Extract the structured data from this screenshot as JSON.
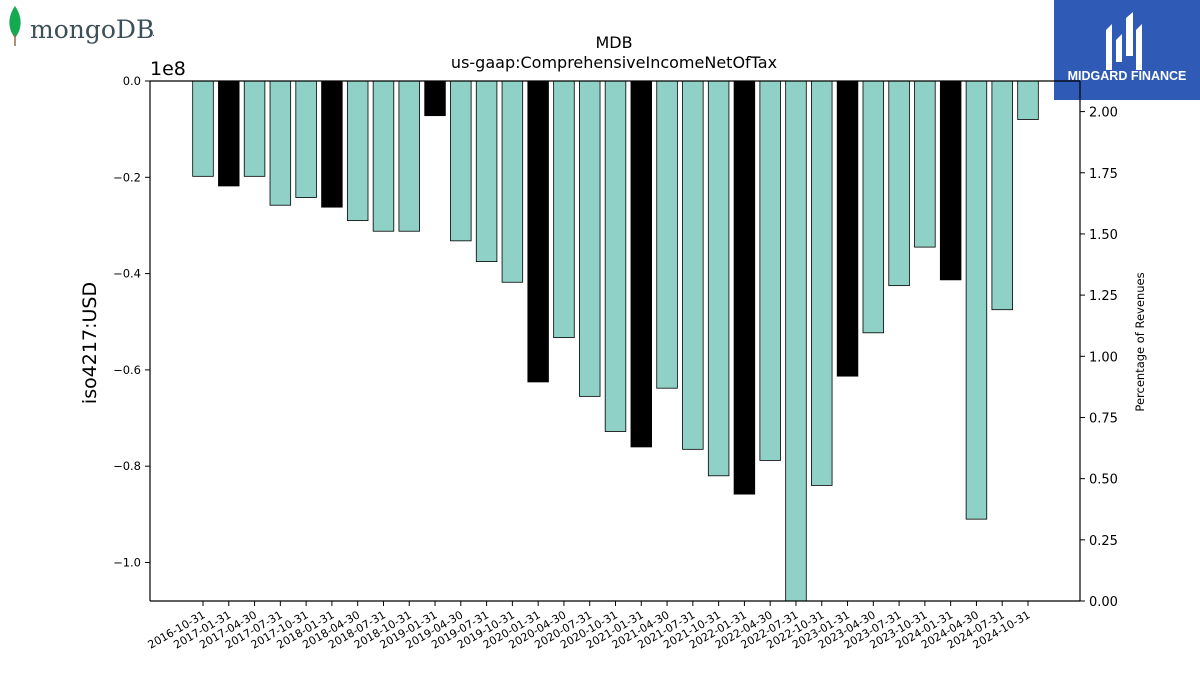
{
  "brand_left": {
    "name": "mongoDB",
    "suffix": "."
  },
  "brand_right": {
    "name": "MIDGARD FINANCE"
  },
  "chart_data": {
    "type": "bar",
    "title": "MDB",
    "subtitle": "us-gaap:ComprehensiveIncomeNetOfTax",
    "ylabel": "iso4217:USD",
    "y2label": "Percentage of Revenues",
    "offset_label": "1e8",
    "ylim": [
      -1.08,
      0.0
    ],
    "y2lim": [
      0.0,
      2.125
    ],
    "yticks": [
      "0.0",
      "−0.2",
      "−0.4",
      "−0.6",
      "−0.8",
      "−1.0"
    ],
    "ytick_values": [
      0.0,
      -0.2,
      -0.4,
      -0.6,
      -0.8,
      -1.0
    ],
    "y2ticks": [
      "0.00",
      "0.25",
      "0.50",
      "0.75",
      "1.00",
      "1.25",
      "1.50",
      "1.75",
      "2.00"
    ],
    "y2tick_values": [
      0.0,
      0.25,
      0.5,
      0.75,
      1.0,
      1.25,
      1.5,
      1.75,
      2.0
    ],
    "colors": {
      "quarter": "#8fd1c6",
      "annual": "#000000"
    },
    "categories": [
      "2016-10-31",
      "2017-01-31",
      "2017-04-30",
      "2017-07-31",
      "2017-10-31",
      "2018-01-31",
      "2018-04-30",
      "2018-07-31",
      "2018-10-31",
      "2019-01-31",
      "2019-04-30",
      "2019-07-31",
      "2019-10-31",
      "2020-01-31",
      "2020-04-30",
      "2020-07-31",
      "2020-10-31",
      "2021-01-31",
      "2021-04-30",
      "2021-07-31",
      "2021-10-31",
      "2022-01-31",
      "2022-04-30",
      "2022-07-31",
      "2022-10-31",
      "2023-01-31",
      "2023-04-30",
      "2023-07-31",
      "2023-10-31",
      "2024-01-31",
      "2024-04-30",
      "2024-07-31",
      "2024-10-31"
    ],
    "values": [
      -0.198,
      -0.218,
      -0.198,
      -0.258,
      -0.242,
      -0.262,
      -0.29,
      -0.312,
      -0.312,
      -0.072,
      -0.332,
      -0.375,
      -0.418,
      -0.625,
      -0.533,
      -0.655,
      -0.728,
      -0.76,
      -0.638,
      -0.765,
      -0.82,
      -0.858,
      -0.788,
      -1.08,
      -0.84,
      -0.613,
      -0.523,
      -0.425,
      -0.345,
      -0.413,
      -0.91,
      -0.475,
      -0.08
    ],
    "annual_flags": [
      false,
      true,
      false,
      false,
      false,
      true,
      false,
      false,
      false,
      true,
      false,
      false,
      false,
      true,
      false,
      false,
      false,
      true,
      false,
      false,
      false,
      true,
      false,
      false,
      false,
      true,
      false,
      false,
      false,
      true,
      false,
      false,
      false
    ]
  }
}
